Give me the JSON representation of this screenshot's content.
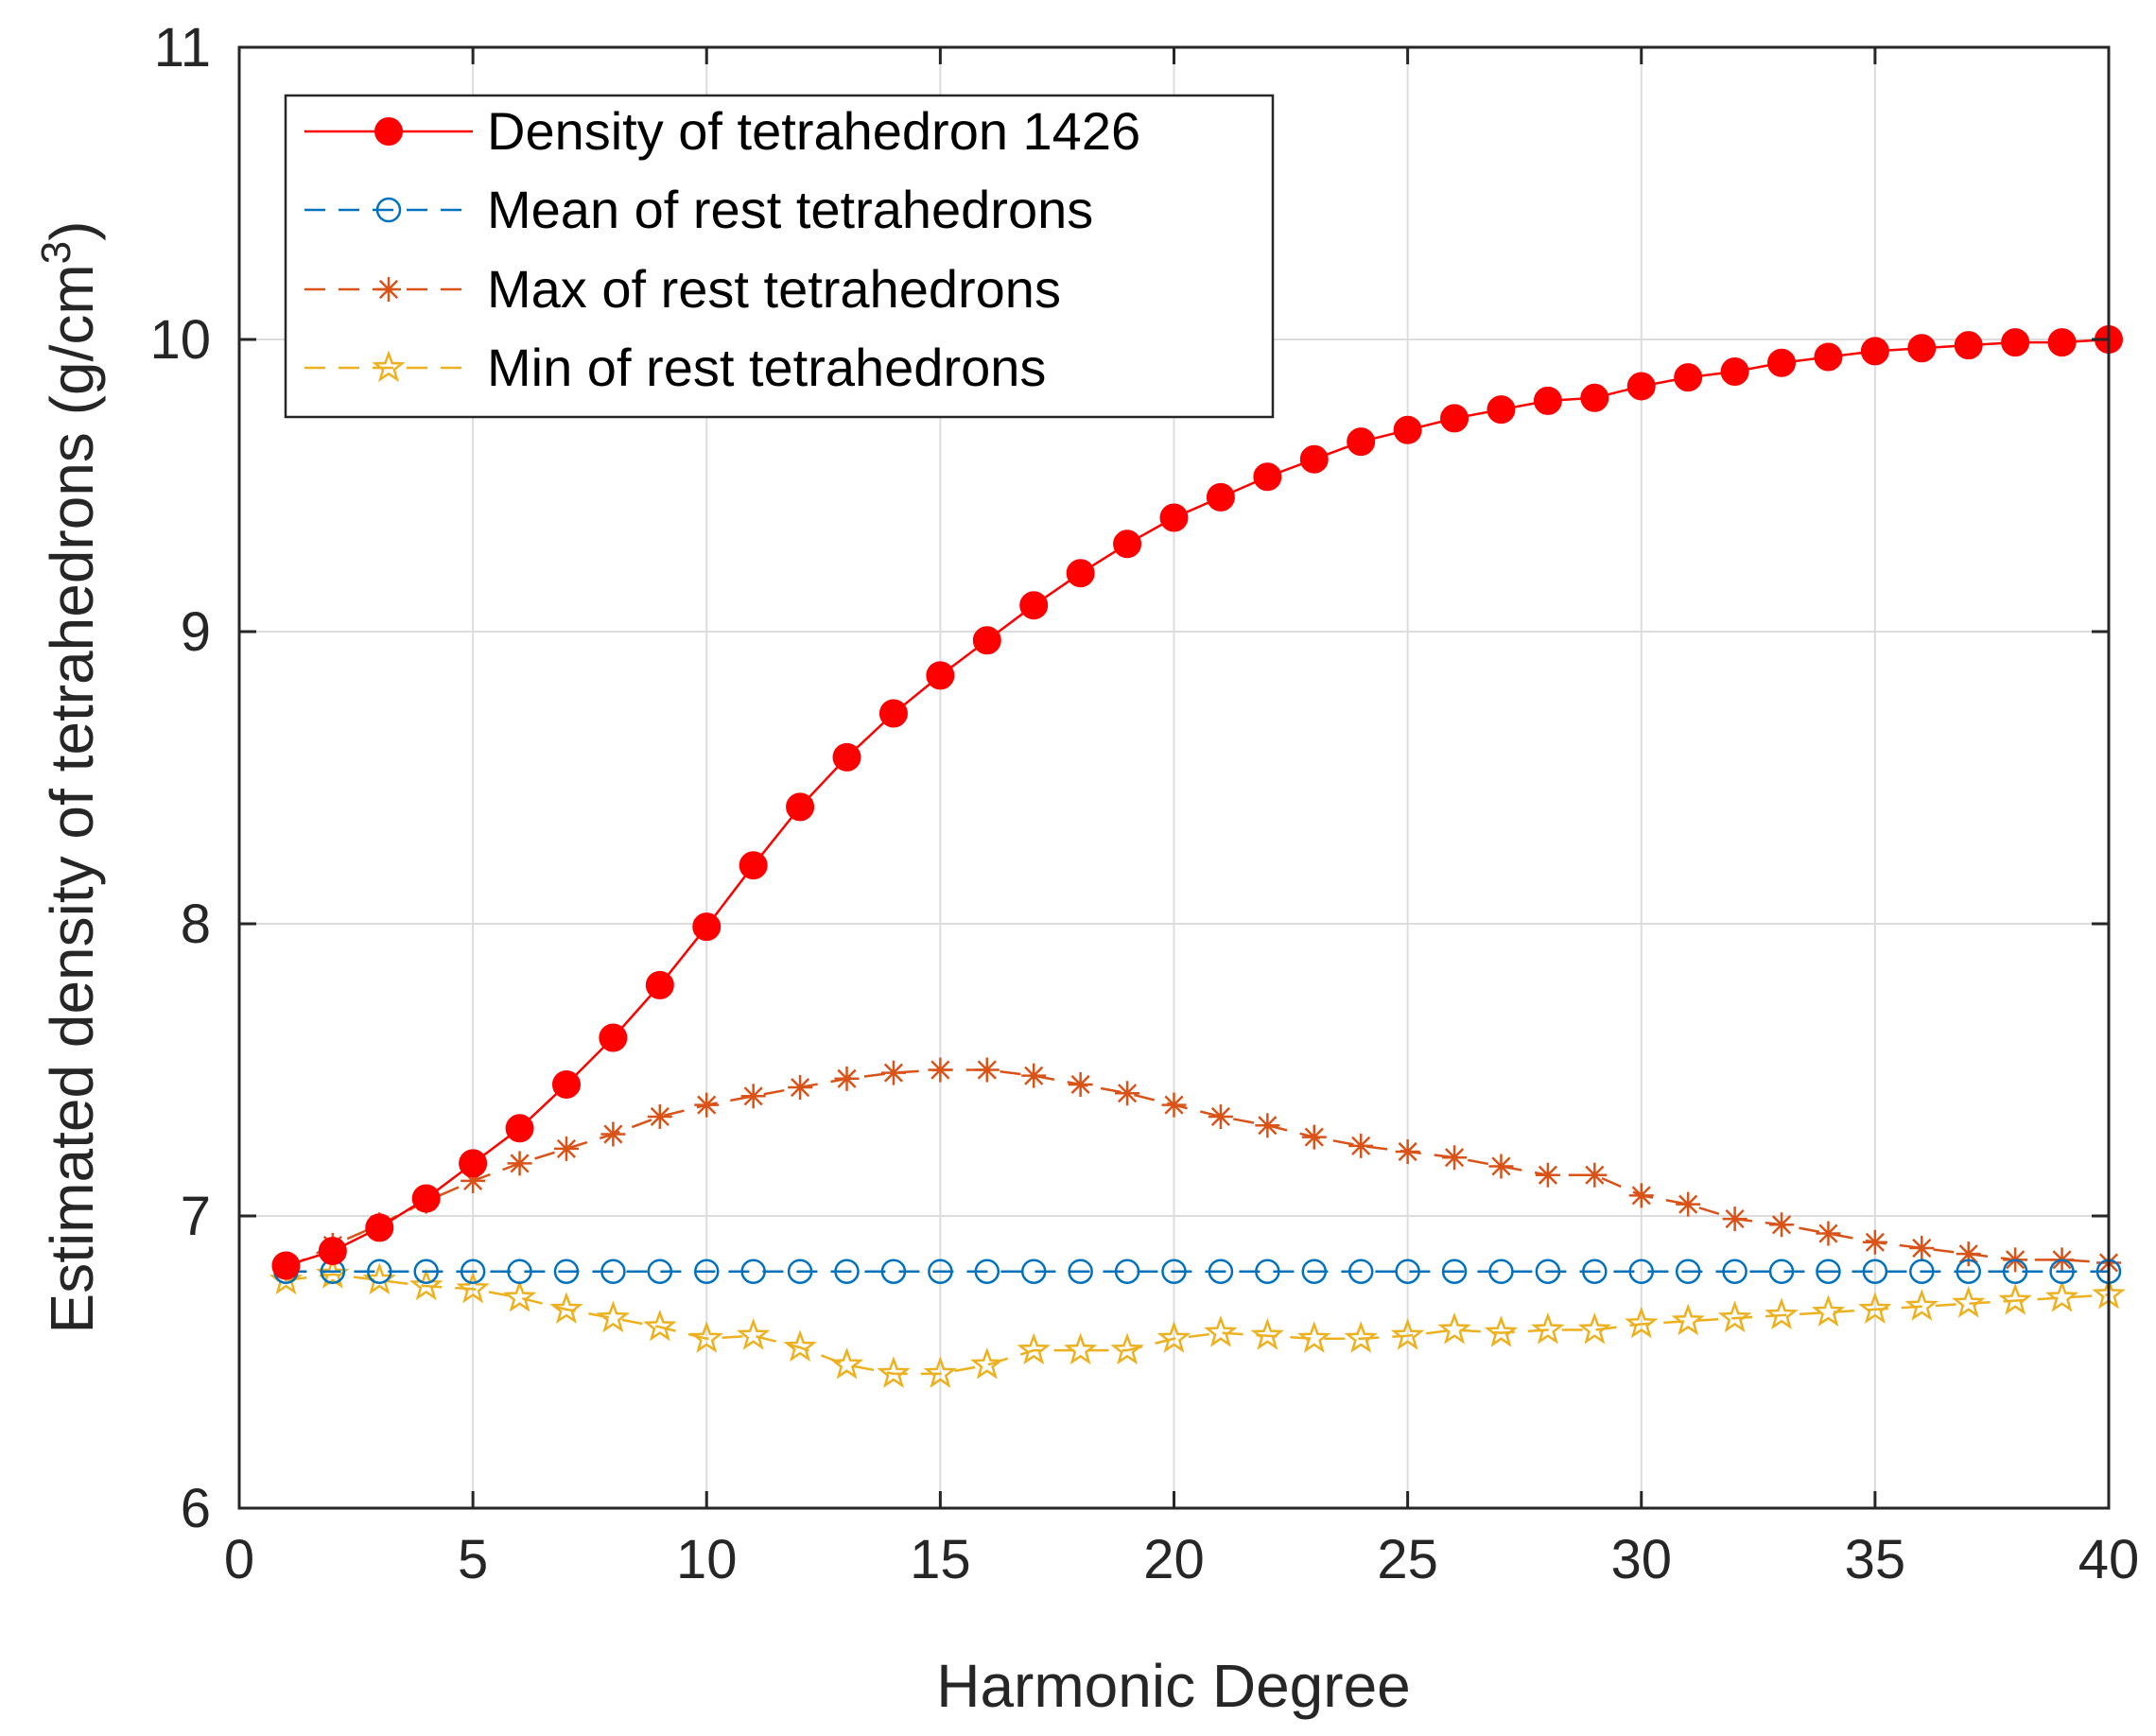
{
  "chart_data": {
    "type": "line",
    "title": "",
    "xlabel": "Harmonic Degree",
    "ylabel_main": "Estimated density of tetrahedrons (g/cm",
    "ylabel_sup": "3",
    "ylabel_close": ")",
    "xlim": [
      0,
      40
    ],
    "ylim": [
      6,
      11
    ],
    "xticks": [
      0,
      5,
      10,
      15,
      20,
      25,
      30,
      35,
      40
    ],
    "yticks": [
      6,
      7,
      8,
      9,
      10,
      11
    ],
    "xtick_labels": [
      "0",
      "5",
      "10",
      "15",
      "20",
      "25",
      "30",
      "35",
      "40"
    ],
    "ytick_labels": [
      "6",
      "7",
      "8",
      "9",
      "10",
      "11"
    ],
    "grid": true,
    "legend_position": "top-left",
    "x": [
      1,
      2,
      3,
      4,
      5,
      6,
      7,
      8,
      9,
      10,
      11,
      12,
      13,
      14,
      15,
      16,
      17,
      18,
      19,
      20,
      21,
      22,
      23,
      24,
      25,
      26,
      27,
      28,
      29,
      30,
      31,
      32,
      33,
      34,
      35,
      36,
      37,
      38,
      39,
      40
    ],
    "series": [
      {
        "name": "Density of tetrahedron 1426",
        "color": "#ff0000",
        "marker": "filled-circle",
        "line": "solid",
        "values": [
          6.83,
          6.88,
          6.96,
          7.06,
          7.18,
          7.3,
          7.45,
          7.61,
          7.79,
          7.99,
          8.2,
          8.4,
          8.57,
          8.72,
          8.85,
          8.97,
          9.09,
          9.2,
          9.3,
          9.39,
          9.46,
          9.53,
          9.59,
          9.65,
          9.69,
          9.73,
          9.76,
          9.79,
          9.8,
          9.84,
          9.87,
          9.89,
          9.92,
          9.94,
          9.96,
          9.97,
          9.98,
          9.99,
          9.99,
          10.0
        ]
      },
      {
        "name": "Mean of rest tetrahedrons",
        "color": "#0072bd",
        "marker": "open-circle",
        "line": "dashed",
        "values": [
          6.81,
          6.81,
          6.81,
          6.81,
          6.81,
          6.81,
          6.81,
          6.81,
          6.81,
          6.81,
          6.81,
          6.81,
          6.81,
          6.81,
          6.81,
          6.81,
          6.81,
          6.81,
          6.81,
          6.81,
          6.81,
          6.81,
          6.81,
          6.81,
          6.81,
          6.81,
          6.81,
          6.81,
          6.81,
          6.81,
          6.81,
          6.81,
          6.81,
          6.81,
          6.81,
          6.81,
          6.81,
          6.81,
          6.81,
          6.81
        ]
      },
      {
        "name": "Max of rest tetrahedrons",
        "color": "#d95319",
        "marker": "asterisk",
        "line": "dashed",
        "values": [
          6.82,
          6.9,
          6.97,
          7.05,
          7.12,
          7.18,
          7.23,
          7.28,
          7.34,
          7.38,
          7.41,
          7.44,
          7.47,
          7.49,
          7.5,
          7.5,
          7.48,
          7.45,
          7.42,
          7.38,
          7.34,
          7.31,
          7.27,
          7.24,
          7.22,
          7.2,
          7.17,
          7.14,
          7.14,
          7.07,
          7.04,
          6.99,
          6.97,
          6.94,
          6.91,
          6.89,
          6.87,
          6.85,
          6.85,
          6.84
        ]
      },
      {
        "name": "Min of rest tetrahedrons",
        "color": "#edb120",
        "marker": "star",
        "line": "dashed",
        "values": [
          6.78,
          6.8,
          6.78,
          6.76,
          6.75,
          6.72,
          6.68,
          6.65,
          6.62,
          6.58,
          6.59,
          6.55,
          6.49,
          6.46,
          6.46,
          6.49,
          6.54,
          6.54,
          6.54,
          6.58,
          6.6,
          6.59,
          6.58,
          6.58,
          6.59,
          6.61,
          6.6,
          6.61,
          6.61,
          6.63,
          6.64,
          6.65,
          6.66,
          6.67,
          6.68,
          6.69,
          6.7,
          6.71,
          6.72,
          6.73
        ]
      }
    ]
  }
}
